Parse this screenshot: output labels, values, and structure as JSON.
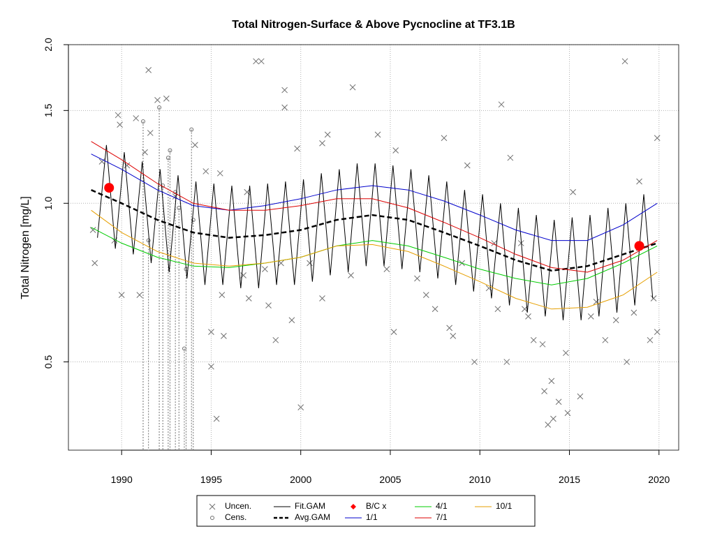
{
  "chart_data": {
    "type": "line",
    "title": "Total Nitrogen-Surface & Above Pycnocline at TF3.1B",
    "y_label": "Total Nitrogen [mg/L]",
    "log_y": true,
    "grid": true,
    "xlim": [
      1987.03,
      2021.1
    ],
    "ylim": [
      0.34,
      2.0
    ],
    "xticks": [
      1990,
      1995,
      2000,
      2005,
      2010,
      2015,
      2020
    ],
    "yticks": [
      0.5,
      {
        "value": 1,
        "label": "1.0"
      },
      1.5,
      {
        "value": 2,
        "label": "2.0"
      }
    ],
    "legend": "bottom",
    "series": [
      {
        "name": "Uncen.",
        "color": "#707070",
        "marker": "x",
        "x": [
          1988.4,
          1988.5,
          1988.9,
          1989.6,
          1989.8,
          1989.9,
          1990.0,
          1990.3,
          1990.8,
          1991.0,
          1991.3,
          1991.5,
          1991.6,
          1992.0,
          1992.5,
          1993.0,
          1994.1,
          1994.7,
          1995.0,
          1995.0,
          1995.3,
          1995.5,
          1995.6,
          1995.7,
          1996.8,
          1997.0,
          1997.1,
          1997.5,
          1997.8,
          1998.0,
          1998.2,
          1998.6,
          1998.9,
          1999.1,
          1999.1,
          1999.5,
          1999.8,
          2000.0,
          2000.5,
          2001.2,
          2001.2,
          2001.5,
          2002.8,
          2002.9,
          2004.3,
          2004.8,
          2005.2,
          2005.3,
          2006.5,
          2007.0,
          2007.5,
          2008.0,
          2008.3,
          2008.5,
          2009.0,
          2009.3,
          2009.7,
          2010.5,
          2010.8,
          2011.0,
          2011.2,
          2011.5,
          2011.7,
          2012.3,
          2012.5,
          2012.7,
          2013.0,
          2013.5,
          2013.6,
          2013.8,
          2014.0,
          2014.1,
          2014.4,
          2014.8,
          2014.9,
          2015.2,
          2015.6,
          2016.2,
          2016.5,
          2017.0,
          2017.6,
          2018.1,
          2018.2,
          2018.6,
          2018.9,
          2019.5,
          2019.7,
          2019.9,
          2019.9
        ],
        "values": [
          0.89,
          0.77,
          1.2,
          0.85,
          1.47,
          1.41,
          0.67,
          1.18,
          1.45,
          0.67,
          1.25,
          1.79,
          1.36,
          1.57,
          1.58,
          1.03,
          1.29,
          1.15,
          0.57,
          0.49,
          0.39,
          1.14,
          0.67,
          0.56,
          0.73,
          1.05,
          0.66,
          1.86,
          1.86,
          0.75,
          0.64,
          0.55,
          0.77,
          1.64,
          1.52,
          0.6,
          1.27,
          0.41,
          0.77,
          0.66,
          1.3,
          1.35,
          0.73,
          1.66,
          1.35,
          0.75,
          0.57,
          1.26,
          0.72,
          0.67,
          0.63,
          1.33,
          0.58,
          0.56,
          0.77,
          1.18,
          0.5,
          0.69,
          0.84,
          0.63,
          1.54,
          0.5,
          1.22,
          0.84,
          0.63,
          0.61,
          0.55,
          0.54,
          0.44,
          0.38,
          0.46,
          0.39,
          0.42,
          0.52,
          0.4,
          1.05,
          0.43,
          0.61,
          0.65,
          0.55,
          0.6,
          1.86,
          0.5,
          0.62,
          1.1,
          0.55,
          0.66,
          1.33,
          0.57
        ]
      },
      {
        "name": "Cens.",
        "color": "#707070",
        "marker": "circle",
        "x": [
          1991.2,
          1991.5,
          1992.1,
          1992.3,
          1992.6,
          1992.7,
          1993.0,
          1993.2,
          1993.5,
          1993.6,
          1993.9,
          1994.0
        ],
        "values": [
          1.43,
          0.85,
          1.52,
          1.08,
          1.22,
          1.26,
          1.05,
          0.98,
          0.53,
          0.75,
          1.38,
          0.93
        ]
      },
      {
        "name": "Fit.GAM",
        "color": "#000000",
        "line": "solid",
        "width": 1,
        "x": [
          1988.65,
          1989.15,
          1989.65,
          1990.15,
          1990.65,
          1991.15,
          1991.65,
          1992.15,
          1992.65,
          1993.15,
          1993.65,
          1994.15,
          1994.65,
          1995.15,
          1995.65,
          1996.15,
          1996.65,
          1997.15,
          1997.65,
          1998.15,
          1998.65,
          1999.15,
          1999.65,
          2000.15,
          2000.65,
          2001.15,
          2001.65,
          2002.15,
          2002.65,
          2003.15,
          2003.65,
          2004.15,
          2004.65,
          2005.15,
          2005.65,
          2006.15,
          2006.65,
          2007.15,
          2007.65,
          2008.15,
          2008.65,
          2009.15,
          2009.65,
          2010.15,
          2010.65,
          2011.15,
          2011.65,
          2012.15,
          2012.65,
          2013.15,
          2013.65,
          2014.15,
          2014.65,
          2015.15,
          2015.65,
          2016.15,
          2016.65,
          2017.15,
          2017.65,
          2018.15,
          2018.65,
          2019.15,
          2019.65
        ],
        "values": [
          0.86,
          1.29,
          0.82,
          1.25,
          0.8,
          1.2,
          0.77,
          1.16,
          0.74,
          1.13,
          0.72,
          1.1,
          0.7,
          1.09,
          0.7,
          1.08,
          0.69,
          1.08,
          0.69,
          1.09,
          0.7,
          1.1,
          0.7,
          1.11,
          0.71,
          1.14,
          0.73,
          1.16,
          0.74,
          1.19,
          0.76,
          1.19,
          0.76,
          1.18,
          0.75,
          1.16,
          0.74,
          1.13,
          0.72,
          1.1,
          0.7,
          1.06,
          0.68,
          1.04,
          0.66,
          1.0,
          0.64,
          0.98,
          0.62,
          0.95,
          0.61,
          0.93,
          0.6,
          0.94,
          0.6,
          0.95,
          0.61,
          0.98,
          0.62,
          1.0,
          0.64,
          1.04,
          0.66
        ]
      },
      {
        "name": "Avg.GAM",
        "color": "#000000",
        "line": "dashed",
        "width": 2.5,
        "x": [
          1988.3,
          1990,
          1992,
          1994,
          1996,
          1998,
          2000,
          2002,
          2004,
          2006,
          2008,
          2010,
          2012,
          2014,
          2016,
          2018,
          2019.9
        ],
        "values": [
          1.06,
          1.0,
          0.93,
          0.88,
          0.86,
          0.87,
          0.89,
          0.93,
          0.95,
          0.93,
          0.88,
          0.83,
          0.78,
          0.745,
          0.76,
          0.8,
          0.84
        ]
      },
      {
        "name": "B/C x",
        "color": "#ff0000",
        "marker": "dot",
        "x": [
          1989.3,
          2018.9
        ],
        "values": [
          1.07,
          0.83
        ]
      },
      {
        "name": "1/1",
        "color": "#0000cc",
        "line": "solid",
        "width": 1,
        "x": [
          1988.3,
          1990,
          1992,
          1994,
          1996,
          1998,
          2000,
          2002,
          2004,
          2006,
          2008,
          2010,
          2012,
          2014,
          2016,
          2018,
          2019.9
        ],
        "values": [
          1.24,
          1.16,
          1.06,
          0.99,
          0.97,
          0.99,
          1.02,
          1.06,
          1.08,
          1.06,
          1.01,
          0.95,
          0.89,
          0.85,
          0.85,
          0.91,
          1.0
        ]
      },
      {
        "name": "4/1",
        "color": "#00cc00",
        "line": "solid",
        "width": 1,
        "x": [
          1988.3,
          1990,
          1992,
          1994,
          1996,
          1998,
          2000,
          2002,
          2004,
          2006,
          2008,
          2010,
          2012,
          2014,
          2016,
          2018,
          2019.9
        ],
        "values": [
          0.9,
          0.84,
          0.79,
          0.76,
          0.755,
          0.77,
          0.79,
          0.83,
          0.85,
          0.83,
          0.79,
          0.75,
          0.72,
          0.7,
          0.72,
          0.77,
          0.83
        ]
      },
      {
        "name": "7/1",
        "color": "#dd0000",
        "line": "solid",
        "width": 1,
        "x": [
          1988.3,
          1990,
          1992,
          1994,
          1996,
          1998,
          2000,
          2002,
          2004,
          2006,
          2008,
          2010,
          2012,
          2014,
          2016,
          2018,
          2019.9
        ],
        "values": [
          1.31,
          1.21,
          1.09,
          1.0,
          0.97,
          0.97,
          0.99,
          1.02,
          1.02,
          0.98,
          0.92,
          0.86,
          0.8,
          0.755,
          0.74,
          0.78,
          0.85
        ]
      },
      {
        "name": "10/1",
        "color": "#e69f00",
        "line": "solid",
        "width": 1,
        "x": [
          1988.3,
          1990,
          1992,
          1994,
          1996,
          1998,
          2000,
          2002,
          2004,
          2006,
          2008,
          2010,
          2012,
          2014,
          2016,
          2018,
          2019.9
        ],
        "values": [
          0.97,
          0.88,
          0.81,
          0.77,
          0.76,
          0.77,
          0.79,
          0.83,
          0.835,
          0.81,
          0.76,
          0.71,
          0.66,
          0.63,
          0.635,
          0.67,
          0.74
        ]
      }
    ]
  }
}
